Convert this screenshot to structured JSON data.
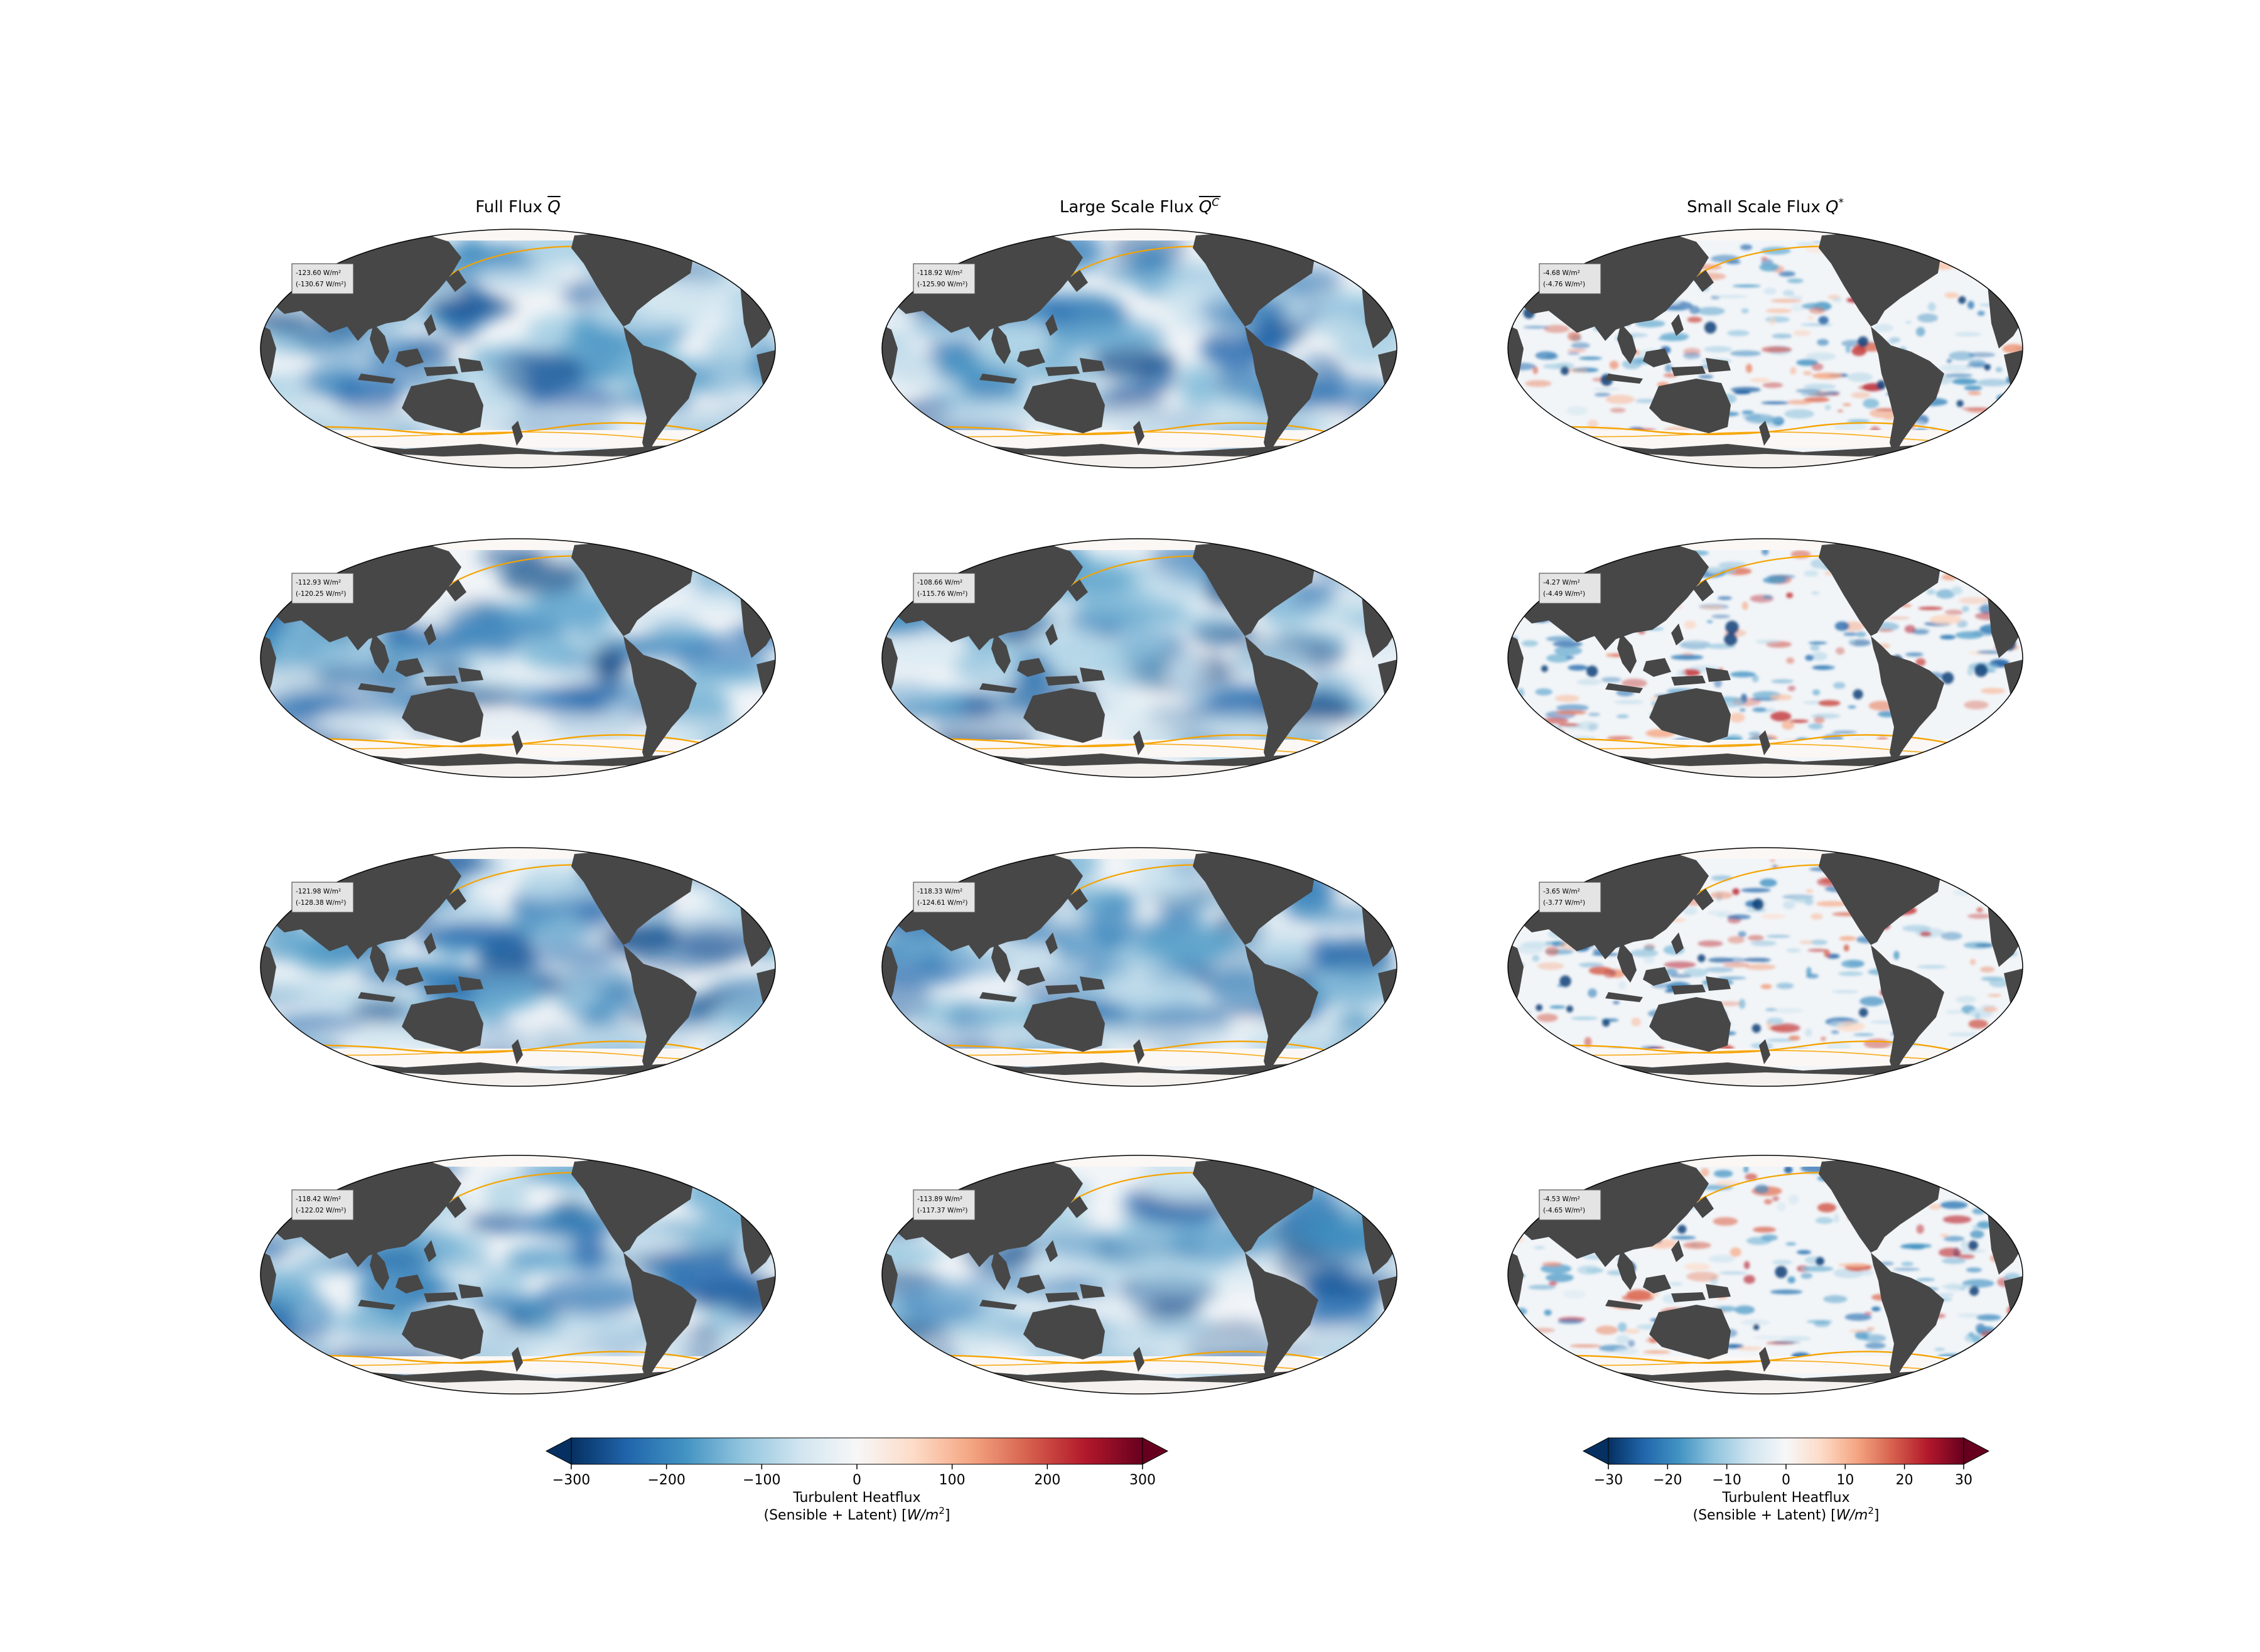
{
  "figure": {
    "column_titles": [
      {
        "main": "Full Flux ",
        "symbol": "Q",
        "over": "bar",
        "sup": ""
      },
      {
        "main": "Large Scale Flux ",
        "symbol": "Q",
        "over": "bar",
        "sup": "C"
      },
      {
        "main": "Small Scale Flux ",
        "symbol": "Q",
        "over": "",
        "sup": "*"
      }
    ]
  },
  "chart_data": {
    "type": "heatmap",
    "projection": "robinson-pacific-centered",
    "unit_text": "W/m²",
    "panels": [
      [
        {
          "stat1": "-123.60 W/m²",
          "stat2": "(-130.67 W/m²)"
        },
        {
          "stat1": "-118.92 W/m²",
          "stat2": "(-125.90 W/m²)"
        },
        {
          "stat1": "-4.68 W/m²",
          "stat2": "(-4.76 W/m²)"
        }
      ],
      [
        {
          "stat1": "-112.93 W/m²",
          "stat2": "(-120.25 W/m²)"
        },
        {
          "stat1": "-108.66 W/m²",
          "stat2": "(-115.76 W/m²)"
        },
        {
          "stat1": "-4.27 W/m²",
          "stat2": "(-4.49 W/m²)"
        }
      ],
      [
        {
          "stat1": "-121.98 W/m²",
          "stat2": "(-128.38 W/m²)"
        },
        {
          "stat1": "-118.33 W/m²",
          "stat2": "(-124.61 W/m²)"
        },
        {
          "stat1": "-3.65 W/m²",
          "stat2": "(-3.77 W/m²)"
        }
      ],
      [
        {
          "stat1": "-118.42 W/m²",
          "stat2": "(-122.02 W/m²)"
        },
        {
          "stat1": "-113.89 W/m²",
          "stat2": "(-117.37 W/m²)"
        },
        {
          "stat1": "-4.53 W/m²",
          "stat2": "(-4.65 W/m²)"
        }
      ]
    ],
    "colorbars": [
      {
        "cmap": "RdBu_r",
        "vmin": -300,
        "vmax": 300,
        "ticks": [
          -300,
          -200,
          -100,
          0,
          100,
          200,
          300
        ],
        "tick_labels": [
          "−300",
          "−200",
          "−100",
          "0",
          "100",
          "200",
          "300"
        ],
        "extend": "both",
        "label_line1": "Turbulent Heatflux",
        "label_line2": "(Sensible + Latent) ",
        "label_unit": "W/m",
        "label_unit_sup": "2"
      },
      {
        "cmap": "RdBu_r",
        "vmin": -30,
        "vmax": 30,
        "ticks": [
          -30,
          -20,
          -10,
          0,
          10,
          20,
          30
        ],
        "tick_labels": [
          "−30",
          "−20",
          "−10",
          "0",
          "10",
          "20",
          "30"
        ],
        "extend": "both",
        "label_line1": "Turbulent Heatflux",
        "label_line2": "(Sensible + Latent) ",
        "label_unit": "W/m",
        "label_unit_sup": "2"
      }
    ],
    "colors": {
      "land": "#474747",
      "ocean_light": "#f2f5f8",
      "ice_edge": "#f5a300",
      "map_outline": "#000000"
    }
  }
}
